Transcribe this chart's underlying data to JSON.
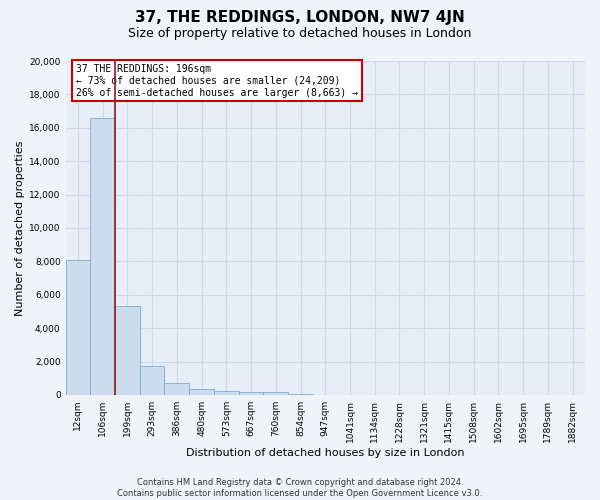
{
  "title": "37, THE REDDINGS, LONDON, NW7 4JN",
  "subtitle": "Size of property relative to detached houses in London",
  "xlabel": "Distribution of detached houses by size in London",
  "ylabel": "Number of detached properties",
  "bar_values": [
    8100,
    16600,
    5300,
    1750,
    700,
    350,
    250,
    200,
    150,
    50,
    20,
    10,
    5,
    3,
    2,
    1,
    1,
    0,
    0,
    0,
    0
  ],
  "bar_labels": [
    "12sqm",
    "106sqm",
    "199sqm",
    "293sqm",
    "386sqm",
    "480sqm",
    "573sqm",
    "667sqm",
    "760sqm",
    "854sqm",
    "947sqm",
    "1041sqm",
    "1134sqm",
    "1228sqm",
    "1321sqm",
    "1415sqm",
    "1508sqm",
    "1602sqm",
    "1695sqm",
    "1789sqm",
    "1882sqm"
  ],
  "bar_color": "#ccdcee",
  "bar_edge_color": "#7aabcc",
  "property_line_x": 1.5,
  "property_line_color": "#8b1a1a",
  "annotation_text": "37 THE REDDINGS: 196sqm\n← 73% of detached houses are smaller (24,209)\n26% of semi-detached houses are larger (8,663) →",
  "annotation_box_edgecolor": "#cc0000",
  "ylim_max": 20000,
  "yticks": [
    0,
    2000,
    4000,
    6000,
    8000,
    10000,
    12000,
    14000,
    16000,
    18000,
    20000
  ],
  "footnote_line1": "Contains HM Land Registry data © Crown copyright and database right 2024.",
  "footnote_line2": "Contains public sector information licensed under the Open Government Licence v3.0.",
  "bg_color": "#f0f4fa",
  "plot_bg_color": "#e8eef8",
  "grid_color": "#d0d8e8",
  "title_fontsize": 11,
  "subtitle_fontsize": 9,
  "axis_label_fontsize": 8,
  "tick_fontsize": 6.5,
  "annotation_fontsize": 7,
  "footnote_fontsize": 6
}
